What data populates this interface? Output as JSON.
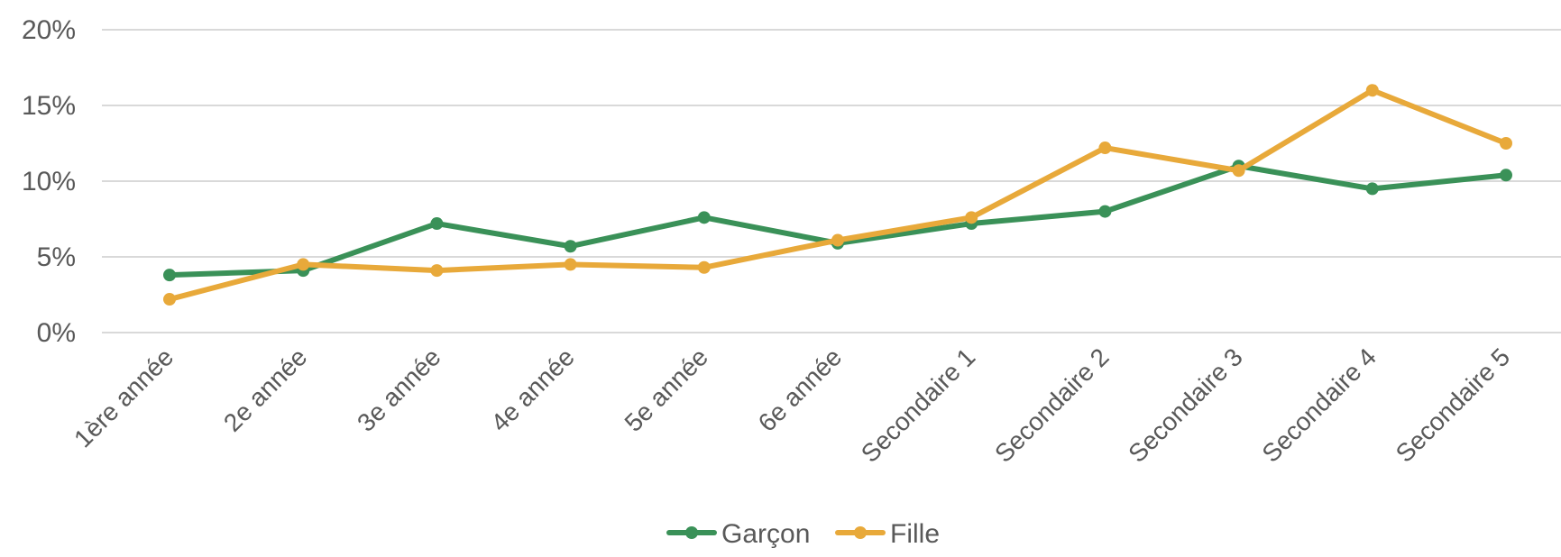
{
  "chart_data": {
    "type": "line",
    "categories": [
      "1ère année",
      "2e année",
      "3e année",
      "4e année",
      "5e année",
      "6e année",
      "Secondaire 1",
      "Secondaire 2",
      "Secondaire 3",
      "Secondaire 4",
      "Secondaire 5"
    ],
    "series": [
      {
        "name": "Garçon",
        "color": "#3a9158",
        "values": [
          3.8,
          4.1,
          7.2,
          5.7,
          7.6,
          5.9,
          7.2,
          8.0,
          11.0,
          9.5,
          10.4
        ]
      },
      {
        "name": "Fille",
        "color": "#e8a93a",
        "values": [
          2.2,
          4.5,
          4.1,
          4.5,
          4.3,
          6.1,
          7.6,
          12.2,
          10.7,
          16.0,
          12.5
        ]
      }
    ],
    "y_ticks": [
      "0%",
      "5%",
      "10%",
      "15%",
      "20%"
    ],
    "ylim": [
      0,
      20
    ],
    "grid": true,
    "legend_position": "bottom"
  }
}
